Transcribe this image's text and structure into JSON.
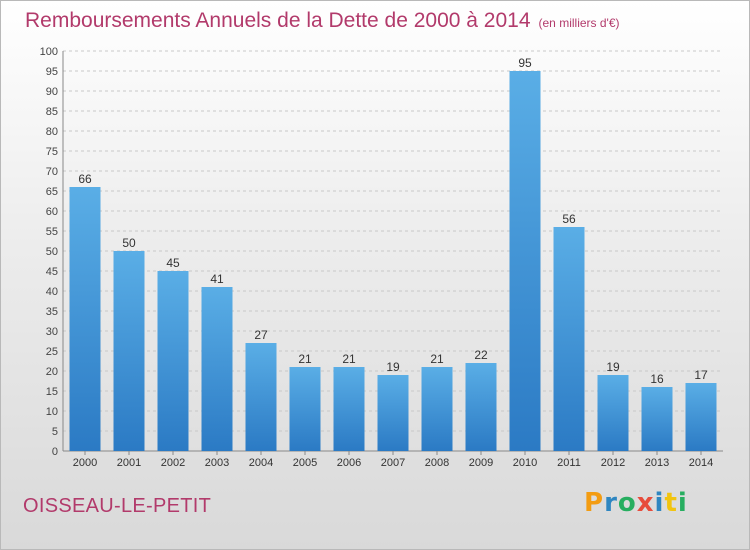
{
  "title": {
    "main": "Remboursements Annuels de la Dette de 2000 à 2014",
    "unit": "(en milliers d'€)"
  },
  "commune": "OISSEAU-LE-PETIT",
  "logo": {
    "text": "Proxiti",
    "colors": [
      "#f39c12",
      "#2e86c1",
      "#27ae60",
      "#e74c3c",
      "#2e86c1",
      "#f1c40f",
      "#27ae60"
    ]
  },
  "colors": {
    "title": "#b23a6b",
    "bar_top": "#5aaee6",
    "bar_bottom": "#2b7ac4"
  },
  "chart_data": {
    "type": "bar",
    "title": "Remboursements Annuels de la Dette de 2000 à 2014",
    "ylabel": "",
    "xlabel": "",
    "ylim": [
      0,
      100
    ],
    "yticks": [
      0,
      5,
      10,
      15,
      20,
      25,
      30,
      35,
      40,
      45,
      50,
      55,
      60,
      65,
      70,
      75,
      80,
      85,
      90,
      95,
      100
    ],
    "grid": true,
    "categories": [
      "2000",
      "2001",
      "2002",
      "2003",
      "2004",
      "2005",
      "2006",
      "2007",
      "2008",
      "2009",
      "2010",
      "2011",
      "2012",
      "2013",
      "2014"
    ],
    "values": [
      66,
      50,
      45,
      41,
      27,
      21,
      21,
      19,
      21,
      22,
      95,
      56,
      19,
      16,
      17
    ]
  }
}
